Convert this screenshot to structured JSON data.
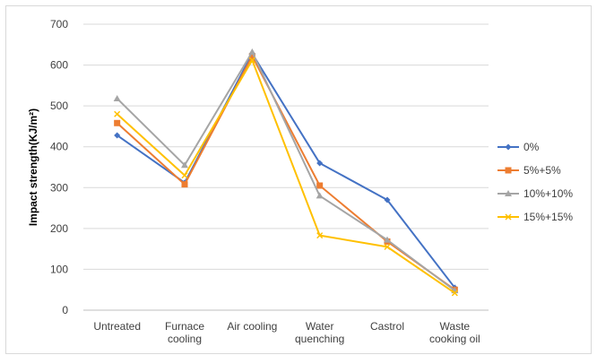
{
  "chart_data": {
    "type": "line",
    "title": "",
    "xlabel": "",
    "ylabel": "Impact strength(KJ/m²)",
    "ylim": [
      0,
      700
    ],
    "yticks": [
      0,
      100,
      200,
      300,
      400,
      500,
      600,
      700
    ],
    "grid": true,
    "legend_position": "right",
    "categories": [
      [
        "Untreated"
      ],
      [
        "Furnace",
        "cooling"
      ],
      [
        "Air cooling"
      ],
      [
        "Water",
        "quenching"
      ],
      [
        "Castrol"
      ],
      [
        "Waste",
        "cooking oil"
      ]
    ],
    "series": [
      {
        "name": "0%",
        "color": "#4472C4",
        "marker": "diamond",
        "values": [
          428,
          312,
          628,
          360,
          270,
          55
        ]
      },
      {
        "name": "5%+5%",
        "color": "#ED7D31",
        "marker": "square",
        "values": [
          458,
          308,
          622,
          305,
          168,
          50
        ]
      },
      {
        "name": "10%+10%",
        "color": "#A5A5A5",
        "marker": "triangle",
        "values": [
          518,
          355,
          632,
          280,
          172,
          48
        ]
      },
      {
        "name": "15%+15%",
        "color": "#FFC000",
        "marker": "x",
        "values": [
          480,
          330,
          612,
          183,
          155,
          42
        ]
      }
    ]
  }
}
